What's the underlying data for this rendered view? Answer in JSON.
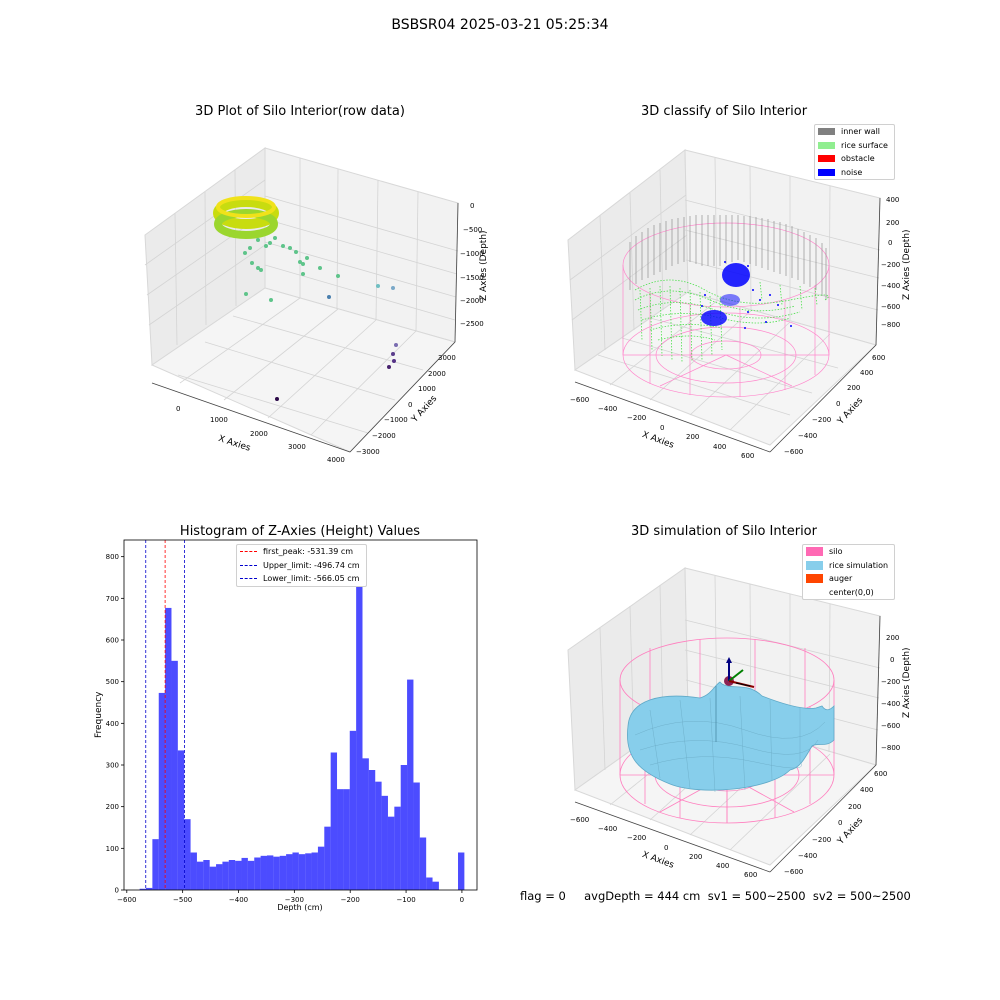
{
  "suptitle": "BSBSR04 2025-03-21 05:25:34",
  "footer": "flag = 0     avgDepth = 444 cm  sv1 = 500~2500  sv2 = 500~2500",
  "panels": {
    "raw": {
      "title": "3D Plot of Silo Interior(row data)",
      "xlabel": "X Axies",
      "ylabel": "Y Axies",
      "zlabel": "Z Axies (Depth)",
      "xticks": [
        "0",
        "1000",
        "2000",
        "3000",
        "4000"
      ],
      "yticks": [
        "3000",
        "2000",
        "1000",
        "0",
        "−1000",
        "−2000",
        "−3000"
      ],
      "zticks": [
        "0",
        "−500",
        "−1000",
        "−1500",
        "−2000",
        "−2500"
      ]
    },
    "classify": {
      "title": "3D classify of Silo Interior",
      "xlabel": "X Axies",
      "ylabel": "Y Axies",
      "zlabel": "Z Axies (Depth)",
      "xticks": [
        "−600",
        "−400",
        "−200",
        "0",
        "200",
        "400",
        "600"
      ],
      "yticks": [
        "600",
        "400",
        "200",
        "0",
        "−200",
        "−400",
        "−600"
      ],
      "zticks": [
        "400",
        "200",
        "0",
        "−200",
        "−400",
        "−600",
        "−800"
      ],
      "legend": [
        {
          "label": "inner wall",
          "color": "#808080"
        },
        {
          "label": "rice surface",
          "color": "#90ee90"
        },
        {
          "label": "obstacle",
          "color": "#ff0000"
        },
        {
          "label": "noise",
          "color": "#0000ff"
        }
      ]
    },
    "simulation": {
      "title": "3D simulation of Silo Interior",
      "xlabel": "X Axies",
      "ylabel": "Y Axies",
      "zlabel": "Z Axies (Depth)",
      "xticks": [
        "−600",
        "−400",
        "−200",
        "0",
        "200",
        "400",
        "600"
      ],
      "yticks": [
        "600",
        "400",
        "200",
        "0",
        "−200",
        "−400",
        "−600"
      ],
      "zticks": [
        "200",
        "0",
        "−200",
        "−400",
        "−600",
        "−800"
      ],
      "legend": [
        {
          "label": "silo",
          "color": "#ff69b4"
        },
        {
          "label": "rice simulation",
          "color": "#87ceeb"
        },
        {
          "label": "auger",
          "color": "#ff4500"
        },
        {
          "label": "center(0,0)",
          "color": ""
        }
      ]
    }
  },
  "chart_data": {
    "type": "bar",
    "title": "Histogram of Z-Axies (Height) Values",
    "xlabel": "Depth (cm)",
    "ylabel": "Frequency",
    "xlim": [
      -605,
      27
    ],
    "ylim": [
      0,
      840
    ],
    "xticks": [
      -600,
      -500,
      -400,
      -300,
      -200,
      -100,
      0
    ],
    "yticks": [
      0,
      100,
      200,
      300,
      400,
      500,
      600,
      700,
      800
    ],
    "bin_width": 11.4,
    "bin_starts": [
      -577,
      -565.6,
      -554.2,
      -542.8,
      -531.4,
      -520,
      -508.6,
      -497.2,
      -485.8,
      -474.4,
      -463,
      -451.6,
      -440.2,
      -428.8,
      -417.4,
      -406,
      -394.6,
      -383.2,
      -371.8,
      -360.4,
      -349,
      -337.6,
      -326.2,
      -314.8,
      -303.4,
      -292,
      -280.6,
      -269.2,
      -257.8,
      -246.4,
      -235,
      -223.6,
      -212.2,
      -200.8,
      -189.4,
      -178,
      -166.6,
      -155.2,
      -143.8,
      -132.4,
      -121,
      -109.6,
      -98.2,
      -86.8,
      -75.4,
      -64,
      -52.6,
      -41.2,
      -29.8,
      -18.4,
      -7
    ],
    "values": [
      3,
      5,
      122,
      473,
      677,
      550,
      335,
      170,
      90,
      68,
      72,
      56,
      62,
      68,
      72,
      70,
      77,
      70,
      78,
      82,
      83,
      80,
      82,
      86,
      90,
      86,
      88,
      90,
      104,
      152,
      330,
      242,
      242,
      382,
      800,
      316,
      288,
      260,
      226,
      176,
      200,
      300,
      505,
      258,
      126,
      30,
      20,
      0,
      0,
      0,
      90
    ],
    "color": "#0000ff",
    "reference_lines": [
      {
        "label": "first_peak: -531.39 cm",
        "value": -531.39,
        "color": "#ff0000"
      },
      {
        "label": "Upper_limit: -496.74 cm",
        "value": -496.74,
        "color": "#0000cd"
      },
      {
        "label": "Lower_limit: -566.05 cm",
        "value": -566.05,
        "color": "#0000cd"
      }
    ]
  }
}
